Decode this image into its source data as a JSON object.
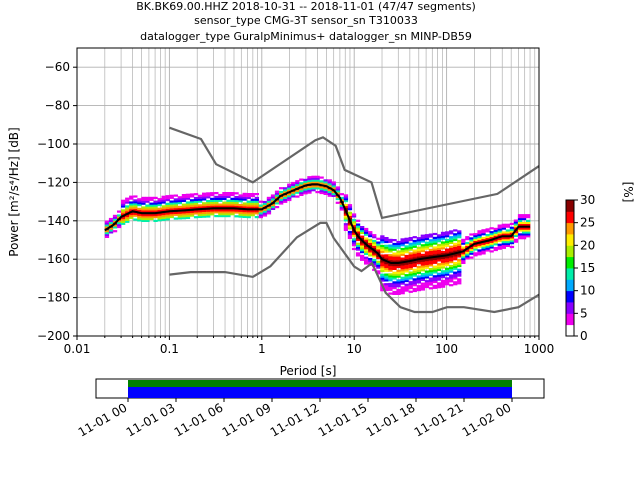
{
  "title_lines": [
    "BK.BK69.00.HHZ   2018-10-31 -- 2018-11-01  (47/47 segments)",
    "sensor_type CMG-3T sensor_sn T310033",
    "datalogger_type GuralpMinimus+ datalogger_sn MINP-DB59"
  ],
  "chart_data": {
    "type": "heatmap",
    "xlabel": "Period [s]",
    "ylabel": "Power [m²/s⁴/Hz] [dB]",
    "x_scale": "log",
    "xlim": [
      0.01,
      1000
    ],
    "ylim": [
      -200,
      -50
    ],
    "x_ticks": [
      0.01,
      0.1,
      1,
      10,
      100,
      1000
    ],
    "x_tick_labels": [
      "0.01",
      "0.1",
      "1",
      "10",
      "100",
      "1000"
    ],
    "y_ticks": [
      -200,
      -180,
      -160,
      -140,
      -120,
      -100,
      -80,
      -60
    ],
    "y_tick_labels": [
      "−200",
      "−180",
      "−160",
      "−140",
      "−120",
      "−100",
      "−80",
      "−60"
    ],
    "grid": true,
    "colorbar": {
      "label": "[%]",
      "range": [
        0,
        30
      ],
      "ticks": [
        0,
        5,
        10,
        15,
        20,
        25,
        30
      ],
      "tick_labels": [
        "0",
        "5",
        "10",
        "15",
        "20",
        "25",
        "30"
      ],
      "colors": [
        "#ffffff",
        "#ee00ee",
        "#8800ff",
        "#0000ff",
        "#00aaff",
        "#00eeaa",
        "#00ee00",
        "#aaee00",
        "#ffee00",
        "#ff9900",
        "#ff0000",
        "#880000"
      ]
    },
    "high_noise_model": {
      "period": [
        0.1,
        0.22,
        0.32,
        0.8,
        3.8,
        4.6,
        6.3,
        7.9,
        15.4,
        20,
        354.8,
        1000
      ],
      "power": [
        -91.5,
        -97.4,
        -110.5,
        -120,
        -98,
        -96.5,
        -101,
        -113.5,
        -120,
        -138.5,
        -126,
        -111.5
      ]
    },
    "low_noise_model": {
      "period": [
        0.1,
        0.17,
        0.4,
        0.8,
        1.24,
        2.4,
        4.3,
        5,
        6,
        10,
        12,
        15.6,
        21.9,
        31.6,
        45,
        70,
        101,
        154,
        328,
        600,
        1000
      ],
      "power": [
        -168,
        -166.7,
        -166.7,
        -169.2,
        -163.7,
        -148.6,
        -141.1,
        -141.1,
        -149,
        -163.8,
        -166.2,
        -162.1,
        -177.5,
        -185,
        -187.5,
        -187.5,
        -185,
        -185,
        -187.5,
        -185,
        -178.5
      ]
    },
    "mean_curve": {
      "period": [
        0.02,
        0.025,
        0.03,
        0.04,
        0.05,
        0.07,
        0.1,
        0.15,
        0.2,
        0.3,
        0.5,
        0.7,
        1,
        1.3,
        1.6,
        2,
        2.5,
        3,
        3.5,
        4,
        4.5,
        5,
        6,
        7,
        8,
        9,
        10,
        11,
        12,
        14,
        16,
        18,
        20,
        25,
        30,
        40,
        50,
        70,
        100,
        150,
        200,
        300,
        400,
        500,
        600,
        800
      ],
      "power": [
        -145,
        -142,
        -138,
        -135,
        -136,
        -136,
        -135,
        -134.5,
        -134,
        -133.5,
        -133.5,
        -134,
        -134,
        -131,
        -127,
        -125,
        -123,
        -121.5,
        -121,
        -121,
        -121.5,
        -122,
        -124,
        -128,
        -134,
        -140,
        -145,
        -148,
        -150,
        -153,
        -155,
        -157,
        -160,
        -162,
        -162,
        -161,
        -160,
        -159,
        -158,
        -156,
        -152,
        -150,
        -148,
        -148,
        -143,
        -143
      ]
    },
    "time_axis": {
      "tick_labels": [
        "11-01 00",
        "11-01 03",
        "11-01 06",
        "11-01 09",
        "11-01 12",
        "11-01 15",
        "11-01 18",
        "11-01 21",
        "11-02 00"
      ],
      "range_hours": [
        -2,
        26
      ],
      "coverage_hours": [
        0,
        24
      ],
      "coverage_colors": [
        "#008000",
        "#0000ff"
      ]
    }
  }
}
